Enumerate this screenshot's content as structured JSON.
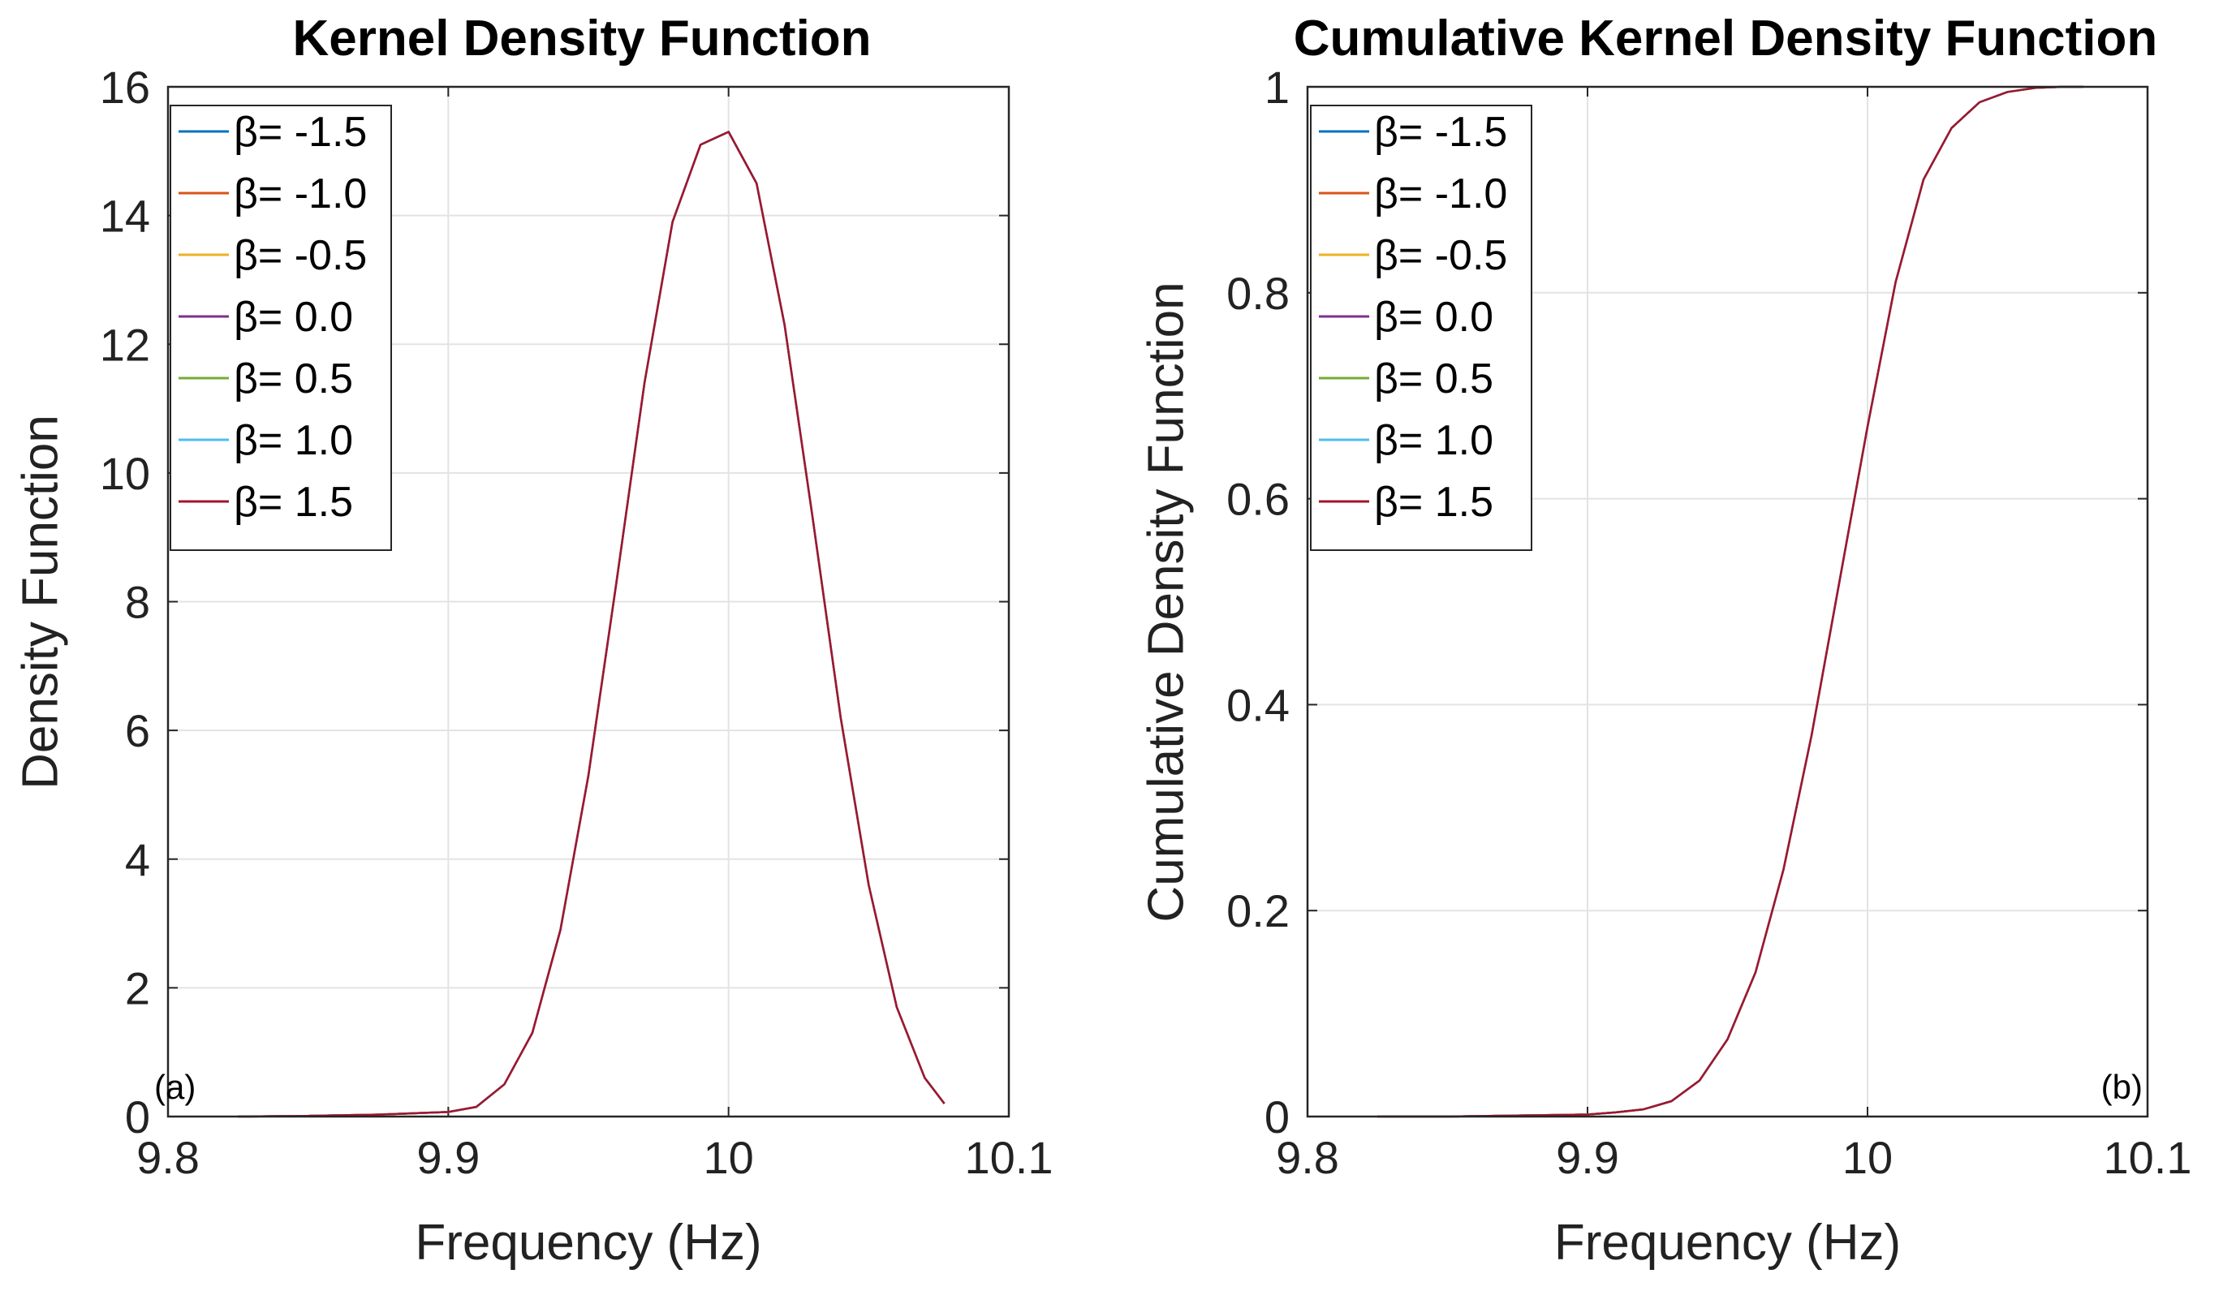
{
  "chart_data": [
    {
      "type": "line",
      "title": "Kernel Density Function",
      "xlabel": "Frequency (Hz)",
      "ylabel": "Density Function",
      "xlim": [
        9.8,
        10.1
      ],
      "ylim": [
        0,
        16
      ],
      "xticks": [
        "9.8",
        "9.9",
        "10",
        "10.1"
      ],
      "yticks": [
        "0",
        "2",
        "4",
        "6",
        "8",
        "10",
        "12",
        "14",
        "16"
      ],
      "grid": true,
      "legend_position": "top-left",
      "annotation": "(a)",
      "x": [
        9.825,
        9.85,
        9.875,
        9.9,
        9.91,
        9.92,
        9.93,
        9.94,
        9.95,
        9.96,
        9.97,
        9.98,
        9.99,
        10.0,
        10.01,
        10.02,
        10.03,
        10.04,
        10.05,
        10.06,
        10.07,
        10.077
      ],
      "series": [
        {
          "name": "β= -1.5",
          "color": "#0072BD",
          "values": [
            0.0,
            0.01,
            0.03,
            0.07,
            0.15,
            0.5,
            1.3,
            2.9,
            5.3,
            8.3,
            11.4,
            13.9,
            15.1,
            15.3,
            14.5,
            12.3,
            9.3,
            6.2,
            3.6,
            1.7,
            0.6,
            0.2
          ]
        },
        {
          "name": "β= -1.0",
          "color": "#D95319",
          "values": [
            0.0,
            0.01,
            0.03,
            0.07,
            0.15,
            0.5,
            1.3,
            2.9,
            5.3,
            8.3,
            11.4,
            13.9,
            15.1,
            15.3,
            14.5,
            12.3,
            9.3,
            6.2,
            3.6,
            1.7,
            0.6,
            0.2
          ]
        },
        {
          "name": "β= -0.5",
          "color": "#EDB120",
          "values": [
            0.0,
            0.01,
            0.03,
            0.07,
            0.15,
            0.5,
            1.3,
            2.9,
            5.3,
            8.3,
            11.4,
            13.9,
            15.1,
            15.3,
            14.5,
            12.3,
            9.3,
            6.2,
            3.6,
            1.7,
            0.6,
            0.2
          ]
        },
        {
          "name": "β= 0.0",
          "color": "#7E2F8E",
          "values": [
            0.0,
            0.01,
            0.03,
            0.07,
            0.15,
            0.5,
            1.3,
            2.9,
            5.3,
            8.3,
            11.4,
            13.9,
            15.1,
            15.3,
            14.5,
            12.3,
            9.3,
            6.2,
            3.6,
            1.7,
            0.6,
            0.2
          ]
        },
        {
          "name": "β= 0.5",
          "color": "#77AC30",
          "values": [
            0.0,
            0.01,
            0.03,
            0.07,
            0.15,
            0.5,
            1.3,
            2.9,
            5.3,
            8.3,
            11.4,
            13.9,
            15.1,
            15.3,
            14.5,
            12.3,
            9.3,
            6.2,
            3.6,
            1.7,
            0.6,
            0.2
          ]
        },
        {
          "name": "β= 1.0",
          "color": "#4DBEEE",
          "values": [
            0.0,
            0.01,
            0.03,
            0.07,
            0.15,
            0.5,
            1.3,
            2.9,
            5.3,
            8.3,
            11.4,
            13.9,
            15.1,
            15.3,
            14.5,
            12.3,
            9.3,
            6.2,
            3.6,
            1.7,
            0.6,
            0.2
          ]
        },
        {
          "name": "β= 1.5",
          "color": "#A2142F",
          "values": [
            0.0,
            0.01,
            0.03,
            0.07,
            0.15,
            0.5,
            1.3,
            2.9,
            5.3,
            8.3,
            11.4,
            13.9,
            15.1,
            15.3,
            14.5,
            12.3,
            9.3,
            6.2,
            3.6,
            1.7,
            0.6,
            0.2
          ]
        }
      ]
    },
    {
      "type": "line",
      "title": "Cumulative Kernel Density Function",
      "xlabel": "Frequency (Hz)",
      "ylabel": "Cumulative Density Function",
      "xlim": [
        9.8,
        10.1
      ],
      "ylim": [
        0,
        1
      ],
      "xticks": [
        "9.8",
        "9.9",
        "10",
        "10.1"
      ],
      "yticks": [
        "0",
        "0.2",
        "0.4",
        "0.6",
        "0.8",
        "1"
      ],
      "grid": true,
      "legend_position": "top-left",
      "annotation": "(b)",
      "x": [
        9.825,
        9.85,
        9.875,
        9.9,
        9.91,
        9.92,
        9.93,
        9.94,
        9.95,
        9.96,
        9.97,
        9.98,
        9.99,
        10.0,
        10.01,
        10.02,
        10.03,
        10.04,
        10.05,
        10.06,
        10.07,
        10.077
      ],
      "series": [
        {
          "name": "β= -1.5",
          "color": "#0072BD",
          "values": [
            0.0,
            0.0,
            0.001,
            0.002,
            0.004,
            0.007,
            0.015,
            0.035,
            0.075,
            0.14,
            0.24,
            0.37,
            0.52,
            0.67,
            0.81,
            0.91,
            0.96,
            0.985,
            0.995,
            0.999,
            1.0,
            1.0
          ]
        },
        {
          "name": "β= -1.0",
          "color": "#D95319",
          "values": [
            0.0,
            0.0,
            0.001,
            0.002,
            0.004,
            0.007,
            0.015,
            0.035,
            0.075,
            0.14,
            0.24,
            0.37,
            0.52,
            0.67,
            0.81,
            0.91,
            0.96,
            0.985,
            0.995,
            0.999,
            1.0,
            1.0
          ]
        },
        {
          "name": "β= -0.5",
          "color": "#EDB120",
          "values": [
            0.0,
            0.0,
            0.001,
            0.002,
            0.004,
            0.007,
            0.015,
            0.035,
            0.075,
            0.14,
            0.24,
            0.37,
            0.52,
            0.67,
            0.81,
            0.91,
            0.96,
            0.985,
            0.995,
            0.999,
            1.0,
            1.0
          ]
        },
        {
          "name": "β= 0.0",
          "color": "#7E2F8E",
          "values": [
            0.0,
            0.0,
            0.001,
            0.002,
            0.004,
            0.007,
            0.015,
            0.035,
            0.075,
            0.14,
            0.24,
            0.37,
            0.52,
            0.67,
            0.81,
            0.91,
            0.96,
            0.985,
            0.995,
            0.999,
            1.0,
            1.0
          ]
        },
        {
          "name": "β= 0.5",
          "color": "#77AC30",
          "values": [
            0.0,
            0.0,
            0.001,
            0.002,
            0.004,
            0.007,
            0.015,
            0.035,
            0.075,
            0.14,
            0.24,
            0.37,
            0.52,
            0.67,
            0.81,
            0.91,
            0.96,
            0.985,
            0.995,
            0.999,
            1.0,
            1.0
          ]
        },
        {
          "name": "β= 1.0",
          "color": "#4DBEEE",
          "values": [
            0.0,
            0.0,
            0.001,
            0.002,
            0.004,
            0.007,
            0.015,
            0.035,
            0.075,
            0.14,
            0.24,
            0.37,
            0.52,
            0.67,
            0.81,
            0.91,
            0.96,
            0.985,
            0.995,
            0.999,
            1.0,
            1.0
          ]
        },
        {
          "name": "β= 1.5",
          "color": "#A2142F",
          "values": [
            0.0,
            0.0,
            0.001,
            0.002,
            0.004,
            0.007,
            0.015,
            0.035,
            0.075,
            0.14,
            0.24,
            0.37,
            0.52,
            0.67,
            0.81,
            0.91,
            0.96,
            0.985,
            0.995,
            0.999,
            1.0,
            1.0
          ]
        }
      ]
    }
  ]
}
